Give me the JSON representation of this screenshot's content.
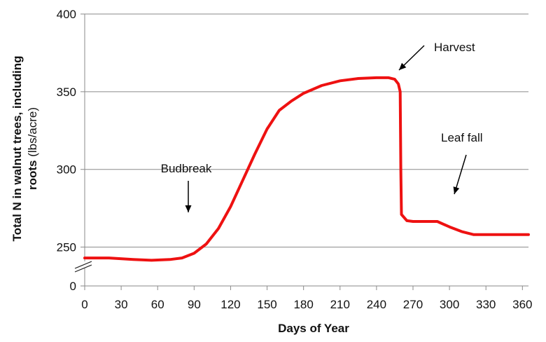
{
  "chart_data": {
    "type": "line",
    "xlabel": "Days of Year",
    "ylabel_line1": "Total N in walnut trees, including",
    "ylabel_line2_bold": "roots",
    "ylabel_line2_unit": " (lbs/acre)",
    "x_ticks": [
      0,
      30,
      60,
      90,
      120,
      150,
      180,
      210,
      240,
      270,
      300,
      330,
      360
    ],
    "y_ticks": [
      0,
      250,
      300,
      350,
      400
    ],
    "xlim": [
      0,
      365
    ],
    "ylim": [
      0,
      400
    ],
    "y_axis_break": true,
    "y_axis_break_range": [
      0,
      225
    ],
    "grid": "horizontal",
    "line_color": "#ee1111",
    "series": [
      {
        "x": [
          0,
          20,
          40,
          55,
          70,
          80,
          90,
          100,
          110,
          120,
          130,
          140,
          150,
          160,
          170,
          180,
          195,
          210,
          225,
          240,
          250,
          255,
          258,
          259.5,
          260,
          260.5,
          265,
          270,
          280,
          290,
          300,
          310,
          320,
          340,
          365
        ],
        "y": [
          243,
          243,
          242,
          241.5,
          242,
          243,
          246,
          252,
          262,
          276,
          293,
          310,
          326,
          338,
          344,
          349,
          354,
          357,
          358.5,
          359,
          359,
          358,
          355,
          350,
          300,
          271,
          267,
          266.5,
          266.5,
          266.5,
          263,
          260,
          258,
          258,
          258
        ]
      }
    ],
    "annotations": [
      {
        "text": "Budbreak",
        "x": 88,
        "y": 246
      },
      {
        "text": "Harvest",
        "x": 258,
        "y": 358
      },
      {
        "text": "Leaf fall",
        "x": 306,
        "y": 266
      }
    ]
  }
}
